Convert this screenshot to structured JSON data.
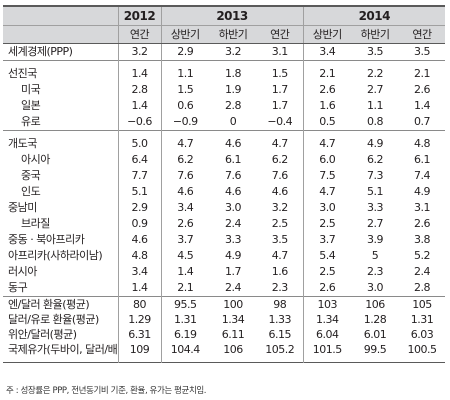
{
  "years": [
    "2012",
    "2013",
    "2014"
  ],
  "periods": [
    "연간",
    "상반기",
    "하반기",
    "연간",
    "상반기",
    "하반기",
    "연간"
  ],
  "rows": [
    {
      "label": "세계경제(PPP)",
      "values": [
        "3.2",
        "2.9",
        "3.2",
        "3.1",
        "3.4",
        "3.5",
        "3.5"
      ]
    },
    {
      "label": "선진국",
      "values": [
        "1.4",
        "1.1",
        "1.8",
        "1.5",
        "2.1",
        "2.2",
        "2.1"
      ]
    },
    {
      "label": "미국",
      "values": [
        "2.8",
        "1.5",
        "1.9",
        "1.7",
        "2.6",
        "2.7",
        "2.6"
      ]
    },
    {
      "label": "일본",
      "values": [
        "1.4",
        "0.6",
        "2.8",
        "1.7",
        "1.6",
        "1.1",
        "1.4"
      ]
    },
    {
      "label": "유로",
      "values": [
        "−0.6",
        "−0.9",
        "0",
        "−0.4",
        "0.5",
        "0.8",
        "0.7"
      ]
    },
    {
      "label": "개도국",
      "values": [
        "5.0",
        "4.7",
        "4.6",
        "4.7",
        "4.7",
        "4.9",
        "4.8"
      ]
    },
    {
      "label": "아시아",
      "values": [
        "6.4",
        "6.2",
        "6.1",
        "6.2",
        "6.0",
        "6.2",
        "6.1"
      ]
    },
    {
      "label": "중국",
      "values": [
        "7.7",
        "7.6",
        "7.6",
        "7.6",
        "7.5",
        "7.3",
        "7.4"
      ]
    },
    {
      "label": "인도",
      "values": [
        "5.1",
        "4.6",
        "4.6",
        "4.6",
        "4.7",
        "5.1",
        "4.9"
      ]
    },
    {
      "label": "중남미",
      "values": [
        "2.9",
        "3.4",
        "3.0",
        "3.2",
        "3.0",
        "3.3",
        "3.1"
      ]
    },
    {
      "label": "브라질",
      "values": [
        "0.9",
        "2.6",
        "2.4",
        "2.5",
        "2.5",
        "2.7",
        "2.6"
      ]
    },
    {
      "label": "중동 · 북아프리카",
      "values": [
        "4.6",
        "3.7",
        "3.3",
        "3.5",
        "3.7",
        "3.9",
        "3.8"
      ]
    },
    {
      "label": "아프리카(사하라이남)",
      "values": [
        "4.8",
        "4.5",
        "4.9",
        "4.7",
        "5.4",
        "5",
        "5.2"
      ]
    },
    {
      "label": "러시아",
      "values": [
        "3.4",
        "1.4",
        "1.7",
        "1.6",
        "2.5",
        "2.3",
        "2.4"
      ]
    },
    {
      "label": "동구",
      "values": [
        "1.4",
        "2.1",
        "2.4",
        "2.3",
        "2.6",
        "3.0",
        "2.8"
      ]
    },
    {
      "label": "엔/달러 환율(평균)",
      "values": [
        "80",
        "95.5",
        "100",
        "98",
        "103",
        "106",
        "105"
      ]
    },
    {
      "label": "달러/유로 환율(평균)",
      "values": [
        "1.29",
        "1.31",
        "1.34",
        "1.33",
        "1.34",
        "1.28",
        "1.31"
      ]
    },
    {
      "label": "위안/달러(평균)",
      "values": [
        "6.31",
        "6.19",
        "6.11",
        "6.15",
        "6.04",
        "6.01",
        "6.03"
      ]
    },
    {
      "label": "국제유가(두바이, 달러/배럴)",
      "values": [
        "109",
        "104.4",
        "106",
        "105.2",
        "101.5",
        "99.5",
        "100.5"
      ]
    }
  ],
  "note": "주 : 성장률은 PPP, 전년동기비 기준, 환율, 유가는 평균치임."
}
